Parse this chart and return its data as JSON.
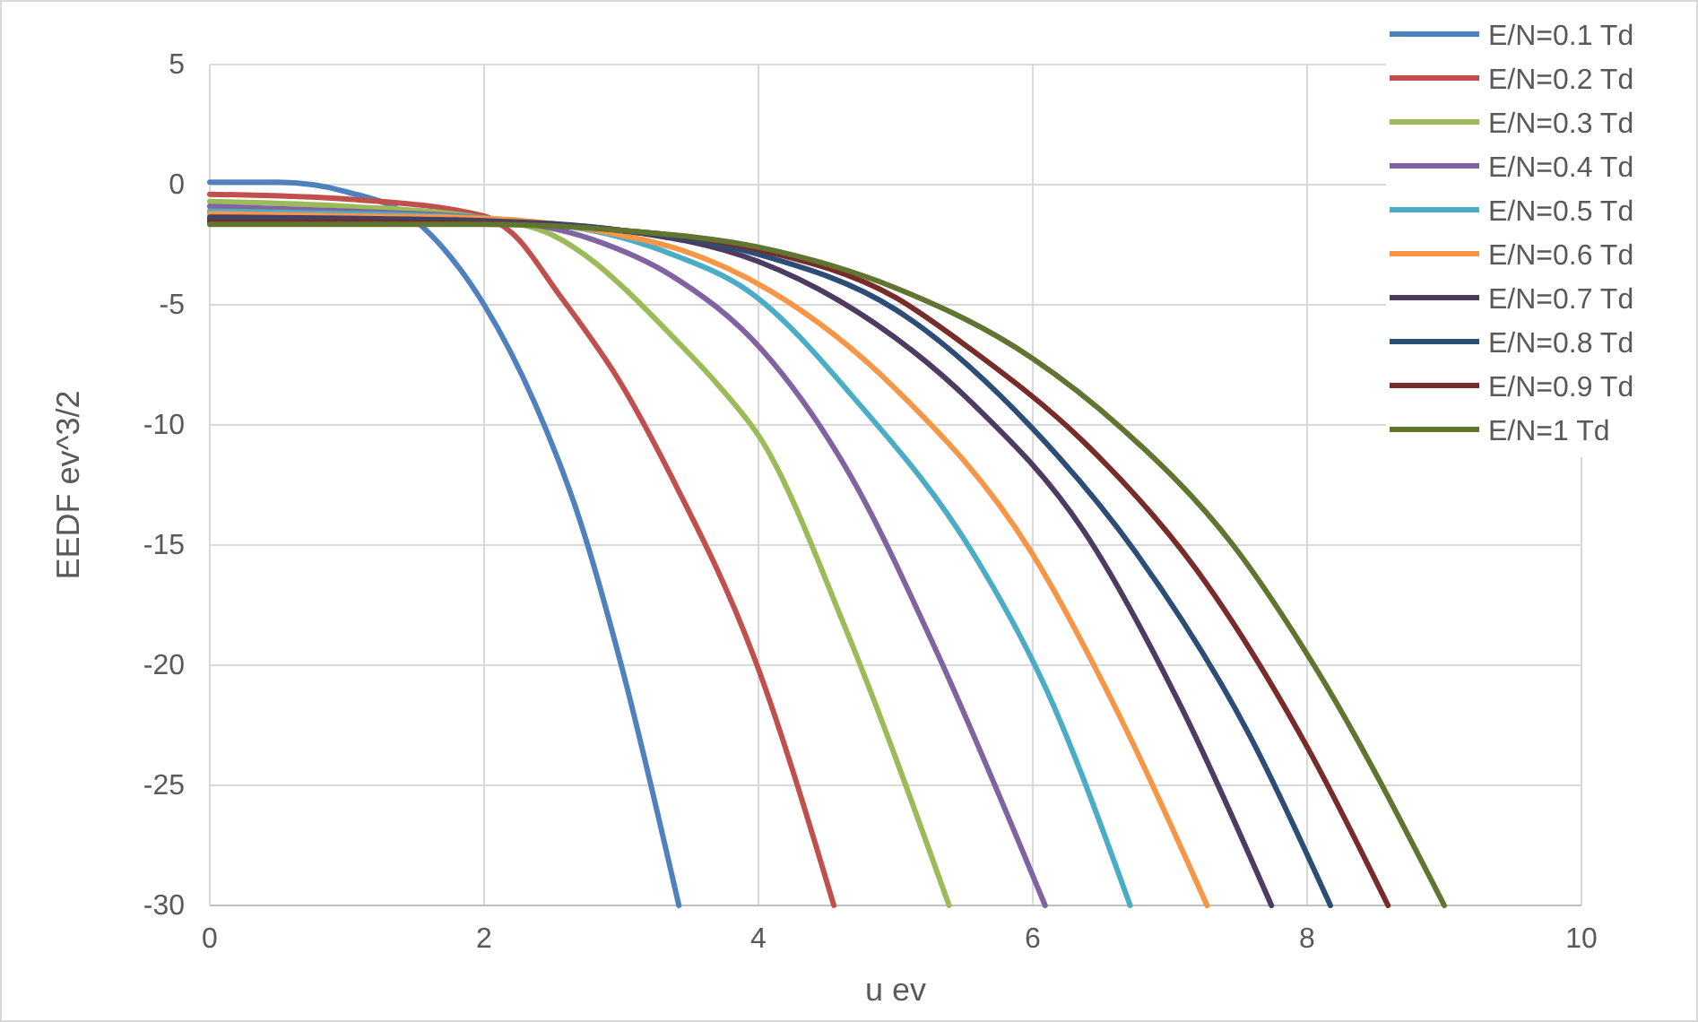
{
  "chart_data": {
    "type": "line",
    "xlabel": "u ev",
    "ylabel": "EEDF ev^3/2",
    "xlim": [
      0,
      10
    ],
    "xticks": [
      0,
      2,
      4,
      6,
      8,
      10
    ],
    "ylim": [
      -30,
      5
    ],
    "yticks": [
      -30,
      -25,
      -20,
      -15,
      -10,
      -5,
      0,
      5
    ],
    "grid": true,
    "legend": "top right",
    "marker": "none",
    "line_style": "solid",
    "series": [
      {
        "name": "E/N=0.1 Td",
        "color": "#4f81bd",
        "x": [
          0,
          0.5,
          1,
          1.5,
          1.74,
          2,
          2.37,
          2.7,
          3,
          3.42
        ],
        "values": [
          0.1,
          0.1,
          -0.3,
          -1.5,
          -2.9,
          -5,
          -9.1,
          -14,
          -20,
          -30
        ]
      },
      {
        "name": "E/N=0.2 Td",
        "color": "#c0504d",
        "x": [
          0,
          1,
          2,
          2.2,
          2.55,
          3,
          3.37,
          3.97,
          4.55
        ],
        "values": [
          -0.4,
          -0.6,
          -1.3,
          -2,
          -4.6,
          -8.3,
          -12.2,
          -19.7,
          -30
        ]
      },
      {
        "name": "E/N=0.3 Td",
        "color": "#9bbb59",
        "x": [
          0,
          1,
          2,
          2.5,
          2.82,
          3,
          3.37,
          3.7,
          4.03,
          4.63,
          5.39
        ],
        "values": [
          -0.7,
          -0.9,
          -1.4,
          -2.1,
          -3.3,
          -4.2,
          -6.3,
          -8.3,
          -10.7,
          -18.4,
          -30
        ]
      },
      {
        "name": "E/N=0.4 Td",
        "color": "#8064a2",
        "x": [
          0,
          1,
          2,
          2.8,
          3.37,
          4.03,
          4.68,
          5.28,
          6.09
        ],
        "values": [
          -0.9,
          -1.1,
          -1.4,
          -2.3,
          -3.8,
          -6.9,
          -12.2,
          -19.2,
          -30
        ]
      },
      {
        "name": "E/N=0.5 Td",
        "color": "#4bacc6",
        "x": [
          0,
          1,
          2,
          3,
          3.37,
          3.92,
          4.73,
          5.56,
          6.09,
          6.71
        ],
        "values": [
          -1.1,
          -1.2,
          -1.4,
          -2.2,
          -2.9,
          -4.4,
          -9.1,
          -15.3,
          -20.9,
          -30
        ]
      },
      {
        "name": "E/N=0.6 Td",
        "color": "#f79646",
        "x": [
          0,
          1,
          2,
          3,
          3.37,
          4.08,
          5,
          5.99,
          6.64,
          7.27
        ],
        "values": [
          -1.2,
          -1.3,
          -1.4,
          -2.1,
          -2.6,
          -4.4,
          -8.5,
          -15.3,
          -22.2,
          -30
        ]
      },
      {
        "name": "E/N=0.7 Td",
        "color": "#4d3b62",
        "x": [
          0,
          1,
          2,
          3,
          4,
          4.58,
          5.56,
          6.37,
          7.07,
          7.74
        ],
        "values": [
          -1.35,
          -1.4,
          -1.5,
          -1.9,
          -3.2,
          -4.8,
          -9.1,
          -14.4,
          -21.6,
          -30
        ]
      },
      {
        "name": "E/N=0.8 Td",
        "color": "#2c4d75",
        "x": [
          0,
          1,
          2,
          3,
          4,
          5,
          5.99,
          6.75,
          7.57,
          8.17
        ],
        "values": [
          -1.45,
          -1.5,
          -1.55,
          -1.9,
          -2.9,
          -5.2,
          -10.1,
          -15.3,
          -22.8,
          -30
        ]
      },
      {
        "name": "E/N=0.9 Td",
        "color": "#772c2a",
        "x": [
          0,
          1,
          2,
          3,
          4,
          5,
          5.56,
          6.37,
          7.19,
          8,
          8.59
        ],
        "values": [
          -1.55,
          -1.55,
          -1.6,
          -1.9,
          -2.7,
          -4.7,
          -6.9,
          -10.7,
          -16,
          -23.4,
          -30
        ]
      },
      {
        "name": "E/N=1 Td",
        "color": "#5f7530",
        "x": [
          0,
          1,
          2,
          3,
          4,
          5,
          5.99,
          6.64,
          7.46,
          8.05,
          9
        ],
        "values": [
          -1.65,
          -1.65,
          -1.65,
          -1.9,
          -2.6,
          -4.3,
          -7.2,
          -10.1,
          -15,
          -20,
          -30
        ]
      }
    ]
  }
}
